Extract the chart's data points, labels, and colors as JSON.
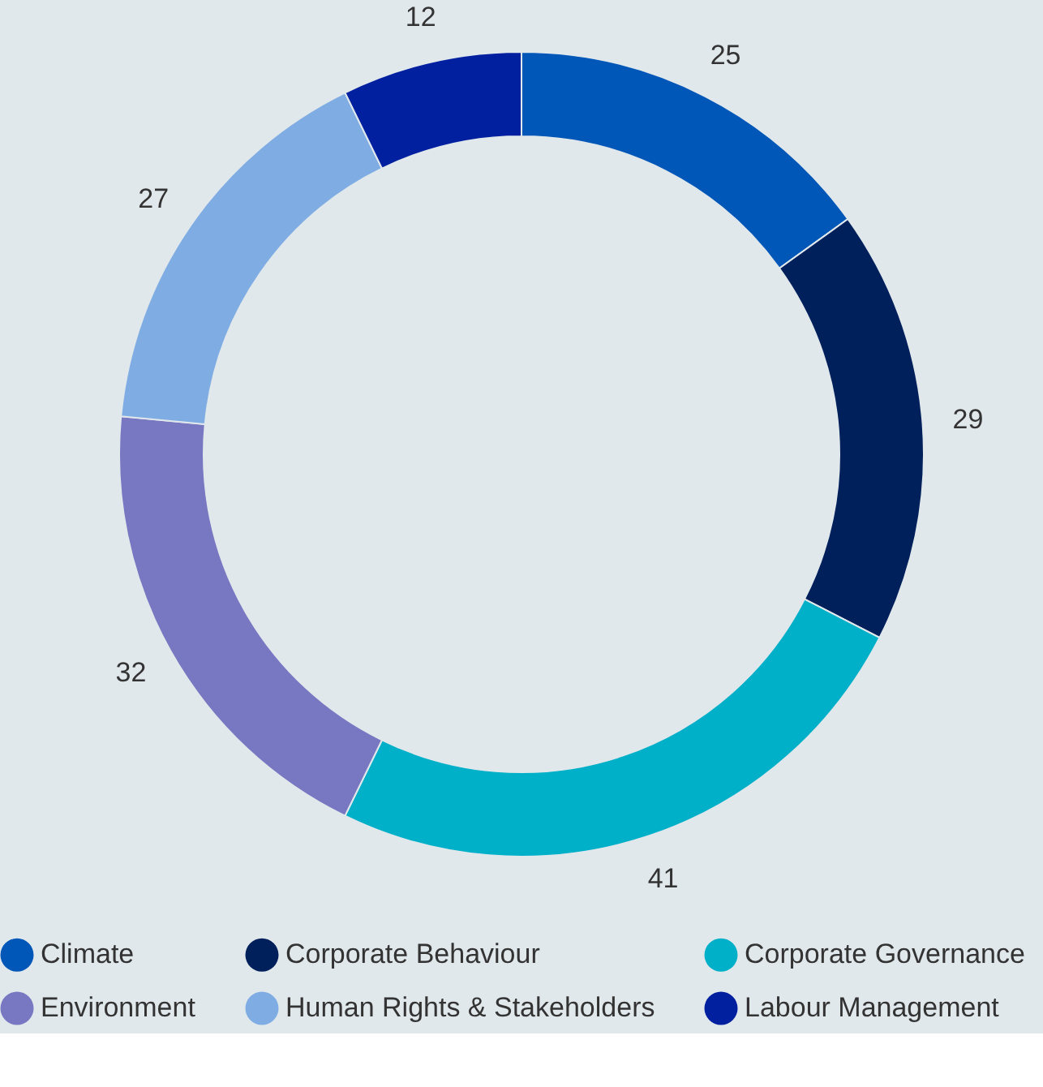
{
  "chart_data": {
    "type": "donut",
    "categories": [
      "Climate",
      "Corporate Behaviour",
      "Corporate Governance",
      "Environment",
      "Human Rights & Stakeholders",
      "Labour Management"
    ],
    "values": [
      25,
      29,
      41,
      32,
      27,
      12
    ],
    "colors": [
      "#0057b8",
      "#00205b",
      "#00afc8",
      "#7877c1",
      "#7fade3",
      "#0020a0"
    ],
    "data_labels": true,
    "legend": "bottom"
  }
}
